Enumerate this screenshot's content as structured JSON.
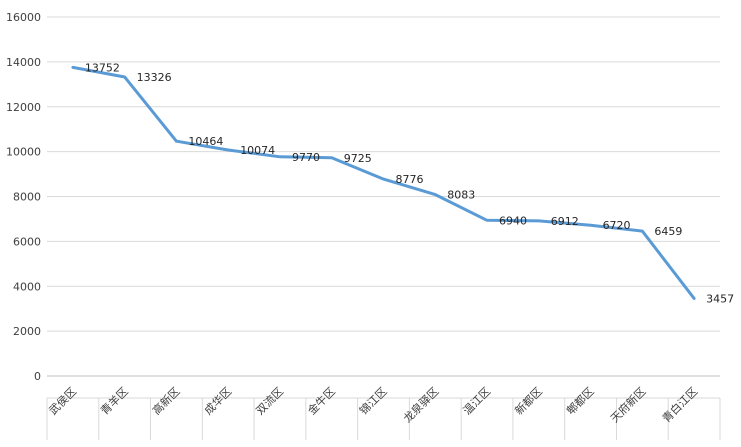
{
  "chart_data": {
    "type": "line",
    "title": "",
    "xlabel": "",
    "ylabel": "",
    "categories": [
      "武侯区",
      "青羊区",
      "高新区",
      "成华区",
      "双流区",
      "金牛区",
      "锦江区",
      "龙泉驿区",
      "温江区",
      "新都区",
      "郫都区",
      "天府新区",
      "青白江区"
    ],
    "series": [
      {
        "values": [
          13752,
          13326,
          10464,
          10074,
          9770,
          9725,
          8776,
          8083,
          6940,
          6912,
          6720,
          6459,
          3457
        ],
        "color": "#5b9bd5"
      }
    ],
    "ylim": [
      0,
      16000
    ],
    "yticks": [
      0,
      2000,
      4000,
      6000,
      8000,
      10000,
      12000,
      14000,
      16000
    ],
    "grid": true,
    "legend": "none",
    "data_labels": true
  }
}
